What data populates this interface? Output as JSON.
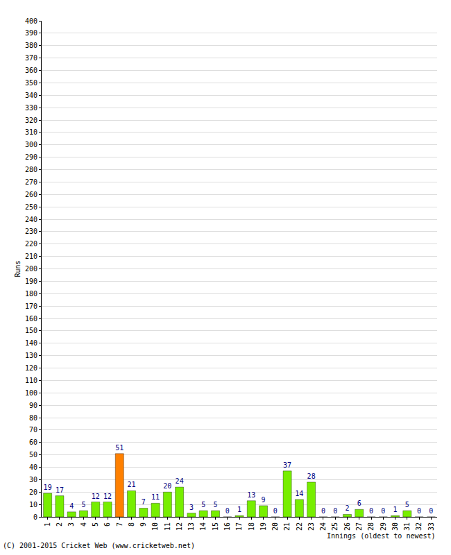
{
  "chart_data": {
    "type": "bar",
    "categories": [
      "1",
      "2",
      "3",
      "4",
      "5",
      "6",
      "7",
      "8",
      "9",
      "10",
      "11",
      "12",
      "13",
      "14",
      "15",
      "16",
      "17",
      "18",
      "19",
      "20",
      "21",
      "22",
      "23",
      "24",
      "25",
      "26",
      "27",
      "28",
      "29",
      "30",
      "31",
      "32",
      "33"
    ],
    "values": [
      19,
      17,
      4,
      5,
      12,
      12,
      51,
      21,
      7,
      11,
      20,
      24,
      3,
      5,
      5,
      0,
      1,
      13,
      9,
      0,
      37,
      14,
      28,
      0,
      0,
      2,
      6,
      0,
      0,
      1,
      5,
      0,
      0
    ],
    "colors": [
      "#77ee00",
      "#77ee00",
      "#77ee00",
      "#77ee00",
      "#77ee00",
      "#77ee00",
      "#ff8000",
      "#77ee00",
      "#77ee00",
      "#77ee00",
      "#77ee00",
      "#77ee00",
      "#77ee00",
      "#77ee00",
      "#77ee00",
      "#77ee00",
      "#77ee00",
      "#77ee00",
      "#77ee00",
      "#77ee00",
      "#77ee00",
      "#77ee00",
      "#77ee00",
      "#77ee00",
      "#77ee00",
      "#77ee00",
      "#77ee00",
      "#77ee00",
      "#77ee00",
      "#77ee00",
      "#77ee00",
      "#77ee00",
      "#77ee00"
    ],
    "x_label": "Innings (oldest to newest)",
    "y_label": "Runs",
    "annotations": [
      "(C) 2001-2015 Cricket Web (www.cricketweb.net)"
    ],
    "ylim": [
      0,
      400
    ],
    "yticks": [
      0,
      10,
      20,
      30,
      40,
      50,
      60,
      70,
      80,
      90,
      100,
      110,
      120,
      130,
      140,
      150,
      160,
      170,
      180,
      190,
      200,
      210,
      220,
      230,
      240,
      250,
      260,
      270,
      280,
      290,
      300,
      310,
      320,
      330,
      340,
      350,
      360,
      370,
      380,
      390,
      400
    ],
    "grid": true,
    "data_labels": true
  }
}
